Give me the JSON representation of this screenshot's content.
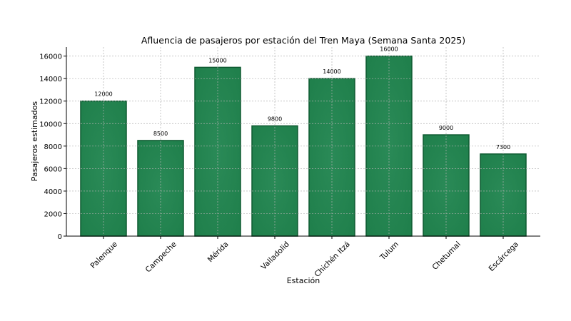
{
  "chart_data": {
    "type": "bar",
    "title": "Afluencia de pasajeros por estación del Tren Maya (Semana Santa 2025)",
    "xlabel": "Estación",
    "ylabel": "Pasajeros estimados",
    "categories": [
      "Palenque",
      "Campeche",
      "Mérida",
      "Valladolid",
      "Chichén Itzá",
      "Tulum",
      "Chetumal",
      "Escárcega"
    ],
    "values": [
      12000,
      8500,
      15000,
      9800,
      14000,
      16000,
      9000,
      7300
    ],
    "data_labels": [
      "12000",
      "8500",
      "15000",
      "9800",
      "14000",
      "16000",
      "9000",
      "7300"
    ],
    "ylim": [
      0,
      16800
    ],
    "yticks": [
      0,
      2000,
      4000,
      6000,
      8000,
      10000,
      12000,
      14000,
      16000
    ],
    "ytick_labels": [
      "0",
      "2000",
      "4000",
      "6000",
      "8000",
      "10000",
      "12000",
      "14000",
      "16000"
    ],
    "grid": true,
    "bar_color": "#1f7f4b",
    "bar_edge_color": "#0e5a31"
  }
}
